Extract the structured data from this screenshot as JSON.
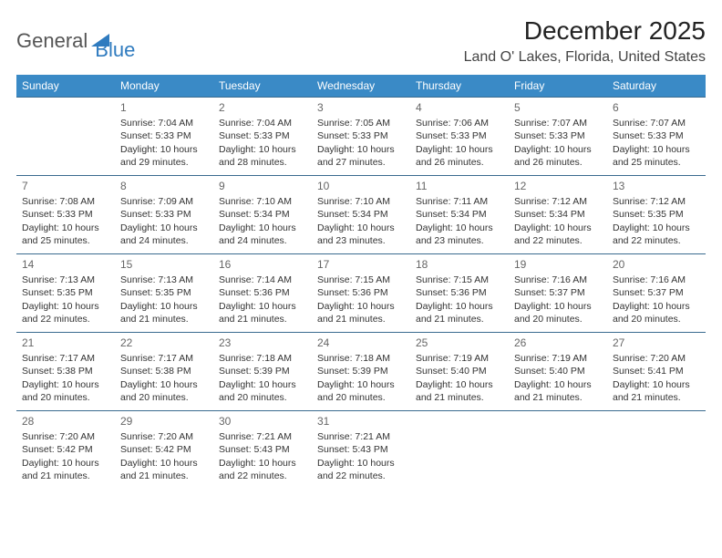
{
  "logo": {
    "word1": "General",
    "word2": "Blue"
  },
  "title": {
    "month": "December 2025",
    "location": "Land O' Lakes, Florida, United States"
  },
  "colors": {
    "header_bg": "#3a8ac6",
    "header_fg": "#ffffff",
    "row_border": "#3a6b8f",
    "logo_accent": "#2f7bbf",
    "title_color": "#222222",
    "text_color": "#333333"
  },
  "weekdays": [
    "Sunday",
    "Monday",
    "Tuesday",
    "Wednesday",
    "Thursday",
    "Friday",
    "Saturday"
  ],
  "weeks": [
    [
      null,
      {
        "n": "1",
        "sr": "Sunrise: 7:04 AM",
        "ss": "Sunset: 5:33 PM",
        "d1": "Daylight: 10 hours",
        "d2": "and 29 minutes."
      },
      {
        "n": "2",
        "sr": "Sunrise: 7:04 AM",
        "ss": "Sunset: 5:33 PM",
        "d1": "Daylight: 10 hours",
        "d2": "and 28 minutes."
      },
      {
        "n": "3",
        "sr": "Sunrise: 7:05 AM",
        "ss": "Sunset: 5:33 PM",
        "d1": "Daylight: 10 hours",
        "d2": "and 27 minutes."
      },
      {
        "n": "4",
        "sr": "Sunrise: 7:06 AM",
        "ss": "Sunset: 5:33 PM",
        "d1": "Daylight: 10 hours",
        "d2": "and 26 minutes."
      },
      {
        "n": "5",
        "sr": "Sunrise: 7:07 AM",
        "ss": "Sunset: 5:33 PM",
        "d1": "Daylight: 10 hours",
        "d2": "and 26 minutes."
      },
      {
        "n": "6",
        "sr": "Sunrise: 7:07 AM",
        "ss": "Sunset: 5:33 PM",
        "d1": "Daylight: 10 hours",
        "d2": "and 25 minutes."
      }
    ],
    [
      {
        "n": "7",
        "sr": "Sunrise: 7:08 AM",
        "ss": "Sunset: 5:33 PM",
        "d1": "Daylight: 10 hours",
        "d2": "and 25 minutes."
      },
      {
        "n": "8",
        "sr": "Sunrise: 7:09 AM",
        "ss": "Sunset: 5:33 PM",
        "d1": "Daylight: 10 hours",
        "d2": "and 24 minutes."
      },
      {
        "n": "9",
        "sr": "Sunrise: 7:10 AM",
        "ss": "Sunset: 5:34 PM",
        "d1": "Daylight: 10 hours",
        "d2": "and 24 minutes."
      },
      {
        "n": "10",
        "sr": "Sunrise: 7:10 AM",
        "ss": "Sunset: 5:34 PM",
        "d1": "Daylight: 10 hours",
        "d2": "and 23 minutes."
      },
      {
        "n": "11",
        "sr": "Sunrise: 7:11 AM",
        "ss": "Sunset: 5:34 PM",
        "d1": "Daylight: 10 hours",
        "d2": "and 23 minutes."
      },
      {
        "n": "12",
        "sr": "Sunrise: 7:12 AM",
        "ss": "Sunset: 5:34 PM",
        "d1": "Daylight: 10 hours",
        "d2": "and 22 minutes."
      },
      {
        "n": "13",
        "sr": "Sunrise: 7:12 AM",
        "ss": "Sunset: 5:35 PM",
        "d1": "Daylight: 10 hours",
        "d2": "and 22 minutes."
      }
    ],
    [
      {
        "n": "14",
        "sr": "Sunrise: 7:13 AM",
        "ss": "Sunset: 5:35 PM",
        "d1": "Daylight: 10 hours",
        "d2": "and 22 minutes."
      },
      {
        "n": "15",
        "sr": "Sunrise: 7:13 AM",
        "ss": "Sunset: 5:35 PM",
        "d1": "Daylight: 10 hours",
        "d2": "and 21 minutes."
      },
      {
        "n": "16",
        "sr": "Sunrise: 7:14 AM",
        "ss": "Sunset: 5:36 PM",
        "d1": "Daylight: 10 hours",
        "d2": "and 21 minutes."
      },
      {
        "n": "17",
        "sr": "Sunrise: 7:15 AM",
        "ss": "Sunset: 5:36 PM",
        "d1": "Daylight: 10 hours",
        "d2": "and 21 minutes."
      },
      {
        "n": "18",
        "sr": "Sunrise: 7:15 AM",
        "ss": "Sunset: 5:36 PM",
        "d1": "Daylight: 10 hours",
        "d2": "and 21 minutes."
      },
      {
        "n": "19",
        "sr": "Sunrise: 7:16 AM",
        "ss": "Sunset: 5:37 PM",
        "d1": "Daylight: 10 hours",
        "d2": "and 20 minutes."
      },
      {
        "n": "20",
        "sr": "Sunrise: 7:16 AM",
        "ss": "Sunset: 5:37 PM",
        "d1": "Daylight: 10 hours",
        "d2": "and 20 minutes."
      }
    ],
    [
      {
        "n": "21",
        "sr": "Sunrise: 7:17 AM",
        "ss": "Sunset: 5:38 PM",
        "d1": "Daylight: 10 hours",
        "d2": "and 20 minutes."
      },
      {
        "n": "22",
        "sr": "Sunrise: 7:17 AM",
        "ss": "Sunset: 5:38 PM",
        "d1": "Daylight: 10 hours",
        "d2": "and 20 minutes."
      },
      {
        "n": "23",
        "sr": "Sunrise: 7:18 AM",
        "ss": "Sunset: 5:39 PM",
        "d1": "Daylight: 10 hours",
        "d2": "and 20 minutes."
      },
      {
        "n": "24",
        "sr": "Sunrise: 7:18 AM",
        "ss": "Sunset: 5:39 PM",
        "d1": "Daylight: 10 hours",
        "d2": "and 20 minutes."
      },
      {
        "n": "25",
        "sr": "Sunrise: 7:19 AM",
        "ss": "Sunset: 5:40 PM",
        "d1": "Daylight: 10 hours",
        "d2": "and 21 minutes."
      },
      {
        "n": "26",
        "sr": "Sunrise: 7:19 AM",
        "ss": "Sunset: 5:40 PM",
        "d1": "Daylight: 10 hours",
        "d2": "and 21 minutes."
      },
      {
        "n": "27",
        "sr": "Sunrise: 7:20 AM",
        "ss": "Sunset: 5:41 PM",
        "d1": "Daylight: 10 hours",
        "d2": "and 21 minutes."
      }
    ],
    [
      {
        "n": "28",
        "sr": "Sunrise: 7:20 AM",
        "ss": "Sunset: 5:42 PM",
        "d1": "Daylight: 10 hours",
        "d2": "and 21 minutes."
      },
      {
        "n": "29",
        "sr": "Sunrise: 7:20 AM",
        "ss": "Sunset: 5:42 PM",
        "d1": "Daylight: 10 hours",
        "d2": "and 21 minutes."
      },
      {
        "n": "30",
        "sr": "Sunrise: 7:21 AM",
        "ss": "Sunset: 5:43 PM",
        "d1": "Daylight: 10 hours",
        "d2": "and 22 minutes."
      },
      {
        "n": "31",
        "sr": "Sunrise: 7:21 AM",
        "ss": "Sunset: 5:43 PM",
        "d1": "Daylight: 10 hours",
        "d2": "and 22 minutes."
      },
      null,
      null,
      null
    ]
  ]
}
